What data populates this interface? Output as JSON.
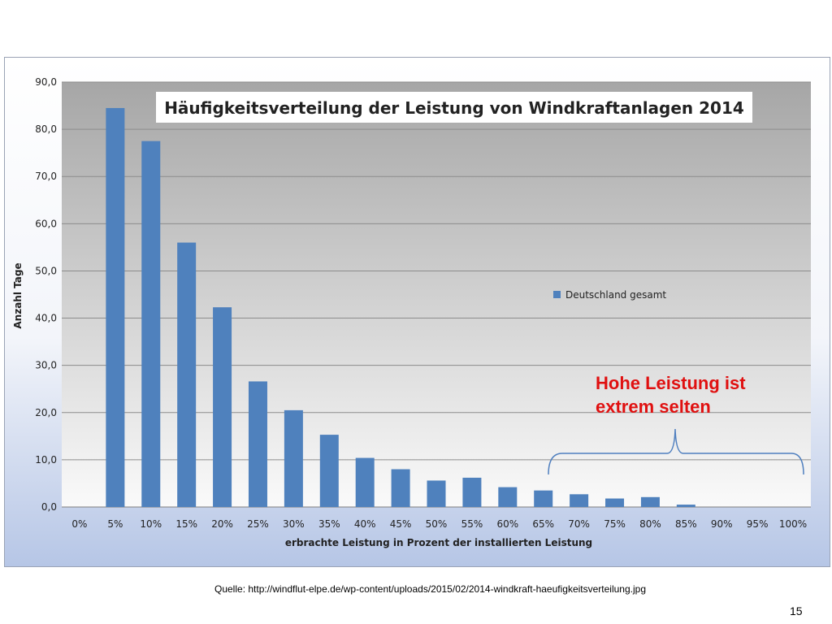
{
  "chart_data": {
    "type": "bar",
    "title": "Häufigkeitsverteilung der Leistung von Windkraftanlagen 2014",
    "xlabel": "erbrachte Leistung in Prozent der installierten Leistung",
    "ylabel": "Anzahl Tage",
    "categories": [
      "0%",
      "5%",
      "10%",
      "15%",
      "20%",
      "25%",
      "30%",
      "35%",
      "40%",
      "45%",
      "50%",
      "55%",
      "60%",
      "65%",
      "70%",
      "75%",
      "80%",
      "85%",
      "90%",
      "95%",
      "100%"
    ],
    "series": [
      {
        "name": "Deutschland gesamt",
        "values": [
          0,
          84.5,
          77.5,
          56,
          42.3,
          26.6,
          20.5,
          15.3,
          10.4,
          8.0,
          5.6,
          6.2,
          4.2,
          3.5,
          2.7,
          1.8,
          2.1,
          0.5,
          0,
          0,
          0
        ],
        "color": "#4f81bd"
      }
    ],
    "ylim": [
      0,
      90
    ],
    "yticks": [
      "0,0",
      "10,0",
      "20,0",
      "30,0",
      "40,0",
      "50,0",
      "60,0",
      "70,0",
      "80,0",
      "90,0"
    ],
    "grid": true,
    "legend_position": "right",
    "annotation": {
      "lines": [
        "Hohe Leistung ist",
        "extrem selten"
      ],
      "color": "#e01010",
      "bracket_color": "#4f7fbf"
    }
  },
  "footer": {
    "source": "Quelle: http://windflut-elpe.de/wp-content/uploads/2015/02/2014-windkraft-haeufigkeitsverteilung.jpg",
    "page_number": "15"
  }
}
